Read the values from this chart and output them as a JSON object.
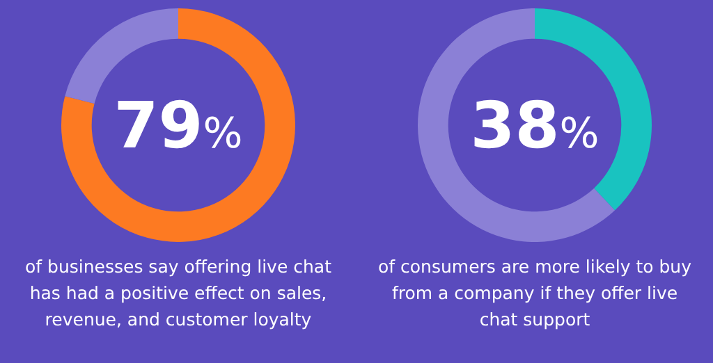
{
  "chart_data": [
    {
      "type": "donut",
      "categories": [
        null,
        null
      ],
      "values": [
        79,
        21
      ],
      "colors": [
        "#fd7a22",
        "#8b80d6"
      ],
      "value_labels": [
        "79%",
        null
      ],
      "annotations": [
        "of businesses say offering live chat has had a positive effect on sales, revenue, and customer loyalty"
      ]
    },
    {
      "type": "donut",
      "categories": [
        null,
        null
      ],
      "values": [
        38,
        62
      ],
      "colors": [
        "#19c3c0",
        "#8b80d6"
      ],
      "value_labels": [
        "38%",
        null
      ],
      "annotations": [
        "of consumers are more likely to buy from a company if they offer live chat support"
      ]
    }
  ]
}
